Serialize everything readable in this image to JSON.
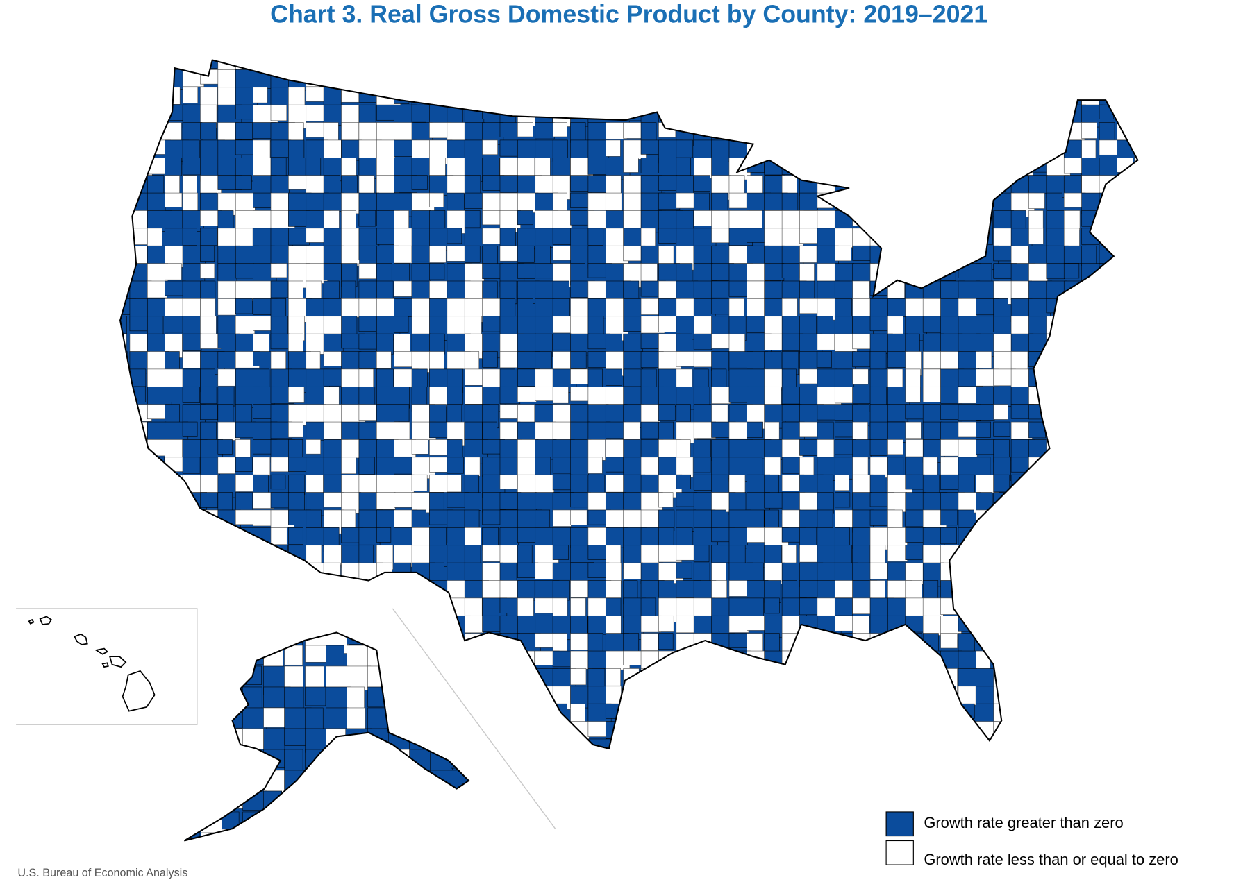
{
  "title": "Chart 3. Real Gross Domestic Product by County: 2019–2021",
  "legend": [
    {
      "label": "Growth rate greater than zero",
      "color": "#0b4c9c"
    },
    {
      "label": "Growth rate less than or equal to zero",
      "color": "#ffffff"
    }
  ],
  "source": "U.S. Bureau of Economic Analysis"
}
